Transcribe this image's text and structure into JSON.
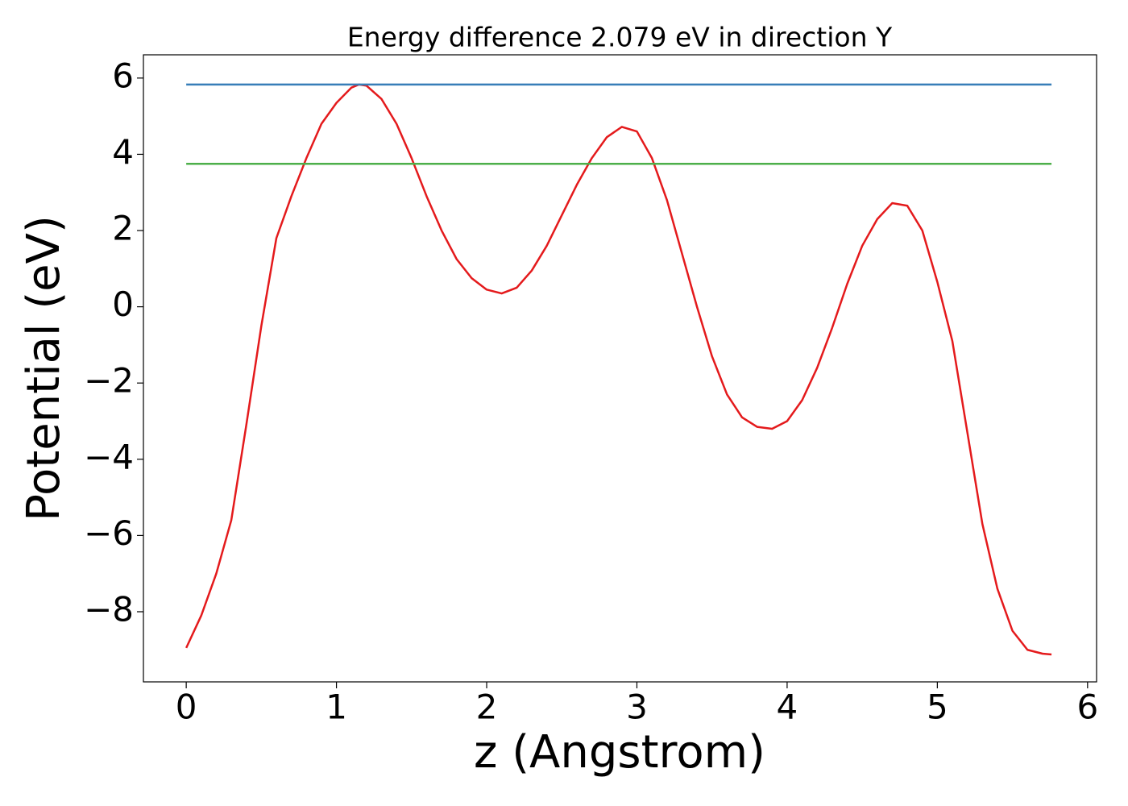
{
  "chart_data": {
    "type": "line",
    "title": "Energy difference 2.079 eV in direction Y",
    "x_label": "z (Angstrom)",
    "y_label": "Potential (eV)",
    "xlim": [
      -0.285,
      6.06
    ],
    "ylim": [
      -9.84,
      6.61
    ],
    "xticks": [
      0,
      1,
      2,
      3,
      4,
      5,
      6
    ],
    "yticks": [
      {
        "value": -8,
        "label": "−8"
      },
      {
        "value": -6,
        "label": "−6"
      },
      {
        "value": -4,
        "label": "−4"
      },
      {
        "value": -2,
        "label": "−2"
      },
      0,
      2,
      4,
      6
    ],
    "grid": false,
    "series": [
      {
        "color": "#e41a1c",
        "x": [
          0,
          0.1,
          0.2,
          0.3,
          0.4,
          0.5,
          0.6,
          0.7,
          0.8,
          0.9,
          1.0,
          1.1,
          1.15,
          1.2,
          1.3,
          1.4,
          1.5,
          1.6,
          1.7,
          1.8,
          1.9,
          2.0,
          2.1,
          2.2,
          2.3,
          2.4,
          2.5,
          2.6,
          2.7,
          2.8,
          2.9,
          3.0,
          3.1,
          3.2,
          3.3,
          3.4,
          3.5,
          3.6,
          3.7,
          3.8,
          3.9,
          4.0,
          4.1,
          4.2,
          4.3,
          4.4,
          4.5,
          4.6,
          4.7,
          4.8,
          4.9,
          5.0,
          5.1,
          5.2,
          5.3,
          5.4,
          5.5,
          5.6,
          5.7,
          5.76
        ],
        "values": [
          -8.95,
          -8.1,
          -7.0,
          -5.6,
          -3.1,
          -0.5,
          1.8,
          2.9,
          3.9,
          4.8,
          5.35,
          5.75,
          5.83,
          5.8,
          5.45,
          4.8,
          3.9,
          2.9,
          2.0,
          1.25,
          0.75,
          0.45,
          0.35,
          0.5,
          0.95,
          1.6,
          2.4,
          3.2,
          3.9,
          4.45,
          4.72,
          4.6,
          3.9,
          2.8,
          1.4,
          0.0,
          -1.3,
          -2.3,
          -2.9,
          -3.15,
          -3.2,
          -3.0,
          -2.45,
          -1.6,
          -0.55,
          0.6,
          1.6,
          2.3,
          2.72,
          2.65,
          2.0,
          0.65,
          -0.9,
          -3.3,
          -5.7,
          -7.4,
          -8.5,
          -9.0,
          -9.1,
          -9.12
        ]
      },
      {
        "color": "#377eb8",
        "x": [
          0,
          5.76
        ],
        "values": [
          5.83,
          5.83
        ]
      },
      {
        "color": "#4daf4a",
        "x": [
          0,
          5.76
        ],
        "values": [
          3.75,
          3.75
        ]
      }
    ]
  }
}
